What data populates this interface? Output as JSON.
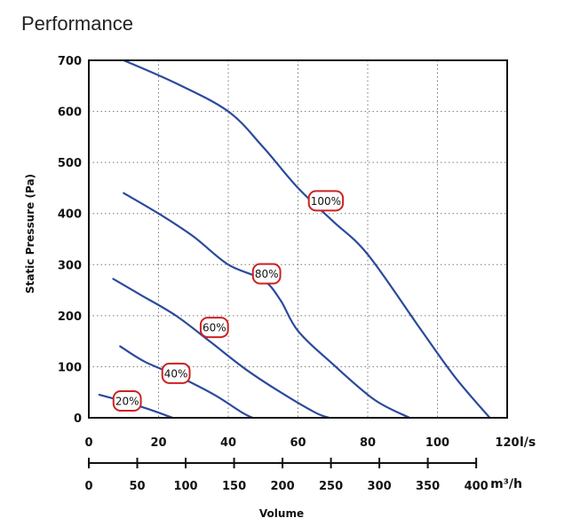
{
  "chart_data": {
    "type": "line",
    "title": "Performance",
    "ylabel": "Static Pressure (Pa)",
    "xlabel": "Volume",
    "x_unit": "l/s",
    "x2_unit": "m³/h",
    "xlim": [
      0,
      120
    ],
    "ylim": [
      0,
      700
    ],
    "x_ticks": [
      "0",
      "20",
      "40",
      "60",
      "80",
      "100",
      "120"
    ],
    "x2_ticks": [
      "0",
      "50",
      "100",
      "150",
      "200",
      "250",
      "300",
      "350",
      "400"
    ],
    "y_ticks": [
      "0",
      "100",
      "200",
      "300",
      "400",
      "500",
      "600",
      "700"
    ],
    "grid": "dotted",
    "series": [
      {
        "name": "100%",
        "color": "#2b4a9b",
        "label_color": "#cc2222",
        "label_at": [
          68,
          425
        ],
        "points": [
          [
            10,
            700
          ],
          [
            25,
            655
          ],
          [
            40,
            600
          ],
          [
            50,
            530
          ],
          [
            60,
            450
          ],
          [
            70,
            385
          ],
          [
            80,
            320
          ],
          [
            95,
            175
          ],
          [
            105,
            80
          ],
          [
            115,
            0
          ]
        ]
      },
      {
        "name": "80%",
        "color": "#2b4a9b",
        "label_color": "#cc2222",
        "label_at": [
          51,
          282
        ],
        "points": [
          [
            10,
            440
          ],
          [
            20,
            400
          ],
          [
            30,
            355
          ],
          [
            40,
            300
          ],
          [
            50,
            270
          ],
          [
            55,
            230
          ],
          [
            60,
            170
          ],
          [
            70,
            105
          ],
          [
            82,
            35
          ],
          [
            92,
            0
          ]
        ]
      },
      {
        "name": "60%",
        "color": "#2b4a9b",
        "label_color": "#cc2222",
        "label_at": [
          36,
          177
        ],
        "points": [
          [
            7,
            272
          ],
          [
            15,
            240
          ],
          [
            25,
            200
          ],
          [
            35,
            148
          ],
          [
            45,
            95
          ],
          [
            55,
            50
          ],
          [
            65,
            10
          ],
          [
            69,
            0
          ]
        ]
      },
      {
        "name": "40%",
        "color": "#2b4a9b",
        "label_color": "#cc2222",
        "label_at": [
          25,
          87
        ],
        "points": [
          [
            9,
            140
          ],
          [
            16,
            110
          ],
          [
            26,
            80
          ],
          [
            36,
            45
          ],
          [
            44,
            10
          ],
          [
            47,
            0
          ]
        ]
      },
      {
        "name": "20%",
        "color": "#2b4a9b",
        "label_color": "#cc2222",
        "label_at": [
          11,
          33
        ],
        "points": [
          [
            3,
            45
          ],
          [
            10,
            32
          ],
          [
            18,
            15
          ],
          [
            24,
            0
          ]
        ]
      }
    ]
  }
}
